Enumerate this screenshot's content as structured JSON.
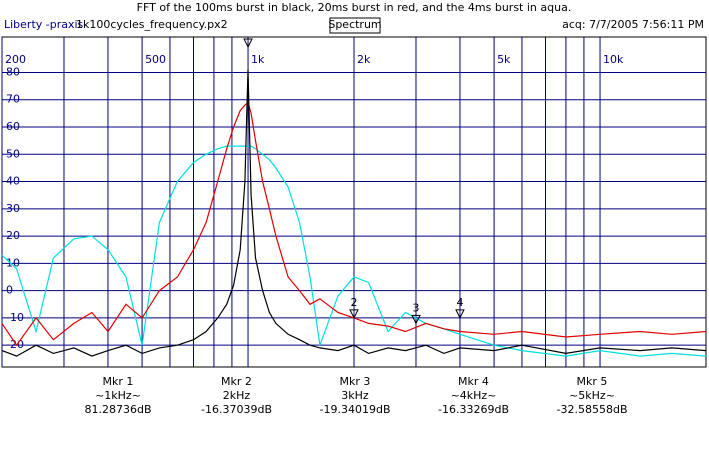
{
  "header": {
    "title": "FFT of the 100ms burst in black, 20ms burst in red, and the 4ms burst in aqua.",
    "app": "Liberty -praxis-",
    "file": "1k100cycles_frequency.px2",
    "view": "Spectrum",
    "acq": "acq: 7/7/2005 7:56:11 PM"
  },
  "chart_data": {
    "type": "line",
    "xscale": "log",
    "grid": true,
    "grid_color": "#000080",
    "xlim": [
      200,
      20000
    ],
    "ylim": [
      -28,
      93
    ],
    "xticks": [
      200,
      500,
      {
        "value": 1000,
        "label": "1k"
      },
      {
        "value": 2000,
        "label": "2k"
      },
      {
        "value": 5000,
        "label": "5k"
      },
      {
        "value": 10000,
        "label": "10k"
      }
    ],
    "xminor": [
      300,
      400,
      600,
      700,
      800,
      900,
      3000,
      4000,
      6000,
      7000,
      8000,
      9000
    ],
    "yticks": [
      -20,
      -10,
      0,
      10,
      20,
      30,
      40,
      50,
      60,
      70,
      80
    ],
    "x": [
      200,
      220,
      250,
      280,
      320,
      360,
      400,
      450,
      500,
      560,
      630,
      700,
      760,
      820,
      870,
      910,
      950,
      980,
      1000,
      1020,
      1050,
      1100,
      1150,
      1200,
      1300,
      1400,
      1500,
      1600,
      1800,
      2000,
      2200,
      2500,
      2800,
      3200,
      3600,
      4000,
      5000,
      6000,
      8000,
      10000,
      13000,
      16000,
      20000
    ],
    "series": [
      {
        "name": "4ms",
        "color": "#00e0e0",
        "values": [
          13,
          8,
          -15,
          12,
          19,
          20,
          15,
          5,
          -20,
          25,
          40,
          47,
          50,
          52,
          53,
          53,
          53,
          53,
          53,
          53,
          52,
          50,
          48,
          45,
          38,
          25,
          5,
          -20,
          -2,
          5,
          3,
          -15,
          -8,
          -12,
          -14,
          -16,
          -20,
          -22,
          -24,
          -22,
          -24,
          -23,
          -24
        ]
      },
      {
        "name": "20ms",
        "color": "#e00000",
        "values": [
          -12,
          -20,
          -10,
          -18,
          -12,
          -8,
          -15,
          -5,
          -10,
          0,
          5,
          15,
          25,
          40,
          52,
          60,
          66,
          68,
          69,
          65,
          55,
          40,
          30,
          20,
          5,
          0,
          -5,
          -3,
          -8,
          -10,
          -12,
          -13,
          -15,
          -12,
          -14,
          -15,
          -16,
          -15,
          -17,
          -16,
          -15,
          -16,
          -15
        ]
      },
      {
        "name": "100ms",
        "color": "#000000",
        "values": [
          -22,
          -24,
          -20,
          -23,
          -21,
          -24,
          -22,
          -20,
          -23,
          -21,
          -20,
          -18,
          -15,
          -10,
          -5,
          2,
          15,
          40,
          81,
          35,
          12,
          0,
          -8,
          -12,
          -16,
          -18,
          -20,
          -21,
          -22,
          -20,
          -23,
          -21,
          -22,
          -20,
          -23,
          -21,
          -22,
          -20,
          -23,
          -21,
          -22,
          -21,
          -22
        ]
      }
    ],
    "plot_markers": [
      {
        "x": 1000,
        "y": 81
      },
      {
        "label": "2",
        "x": 2000,
        "y": -10
      },
      {
        "label": "3",
        "x": 3000,
        "y": -12
      },
      {
        "label": "4",
        "x": 4000,
        "y": -10
      }
    ]
  },
  "markers": [
    {
      "label": "Mkr 1",
      "freq": "~1kHz~",
      "value": "81.28736dB"
    },
    {
      "label": "Mkr 2",
      "freq": "2kHz",
      "value": "-16.37039dB"
    },
    {
      "label": "Mkr 3",
      "freq": "3kHz",
      "value": "-19.34019dB"
    },
    {
      "label": "Mkr 4",
      "freq": "~4kHz~",
      "value": "-16.33269dB"
    },
    {
      "label": "Mkr 5",
      "freq": "~5kHz~",
      "value": "-32.58558dB"
    }
  ]
}
